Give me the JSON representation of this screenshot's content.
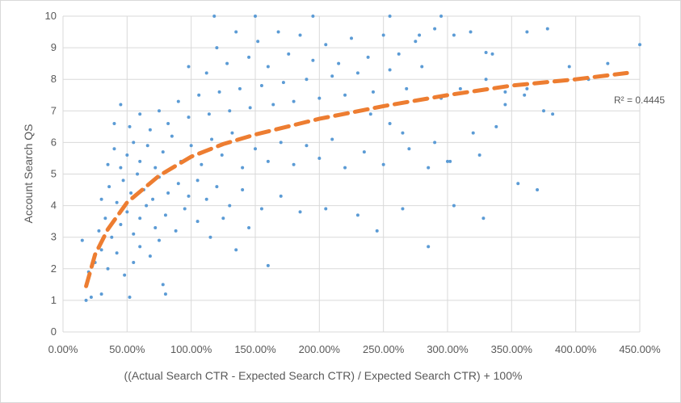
{
  "chart_data": {
    "type": "scatter",
    "title": "",
    "xlabel": "((Actual Search CTR - Expected Search CTR) / Expected  Search CTR) + 100%",
    "ylabel": "Account Search QS",
    "xlim": [
      0,
      4.5
    ],
    "ylim": [
      0,
      10
    ],
    "x_ticks": [
      0,
      0.5,
      1.0,
      1.5,
      2.0,
      2.5,
      3.0,
      3.5,
      4.0,
      4.5
    ],
    "x_tick_labels": [
      "0.00%",
      "50.00%",
      "100.00%",
      "150.00%",
      "200.00%",
      "250.00%",
      "300.00%",
      "350.00%",
      "400.00%",
      "450.00%"
    ],
    "y_ticks": [
      0,
      1,
      2,
      3,
      4,
      5,
      6,
      7,
      8,
      9,
      10
    ],
    "y_tick_labels": [
      "0",
      "1",
      "2",
      "3",
      "4",
      "5",
      "6",
      "7",
      "8",
      "9",
      "10"
    ],
    "grid": "horizontal",
    "legend": "none",
    "colors": {
      "points": "#5b9bd5",
      "trendline": "#ed7d31",
      "grid": "#d9d9d9",
      "text": "#595959"
    },
    "trendline": {
      "type": "logarithmic",
      "r_squared_label": "R² = 0.4445",
      "points": [
        {
          "x": 0.18,
          "y": 1.45
        },
        {
          "x": 0.25,
          "y": 2.45
        },
        {
          "x": 0.35,
          "y": 3.25
        },
        {
          "x": 0.5,
          "y": 4.1
        },
        {
          "x": 0.75,
          "y": 4.95
        },
        {
          "x": 1.0,
          "y": 5.55
        },
        {
          "x": 1.25,
          "y": 5.95
        },
        {
          "x": 1.5,
          "y": 6.25
        },
        {
          "x": 1.75,
          "y": 6.5
        },
        {
          "x": 2.0,
          "y": 6.75
        },
        {
          "x": 2.25,
          "y": 6.95
        },
        {
          "x": 2.5,
          "y": 7.15
        },
        {
          "x": 3.0,
          "y": 7.5
        },
        {
          "x": 3.5,
          "y": 7.8
        },
        {
          "x": 4.0,
          "y": 8.0
        },
        {
          "x": 4.4,
          "y": 8.2
        }
      ]
    },
    "series": [
      {
        "points": [
          {
            "x": 0.18,
            "y": 1.0
          },
          {
            "x": 0.22,
            "y": 1.1
          },
          {
            "x": 0.3,
            "y": 1.2
          },
          {
            "x": 0.52,
            "y": 1.1
          },
          {
            "x": 0.8,
            "y": 1.2
          },
          {
            "x": 0.2,
            "y": 1.9
          },
          {
            "x": 0.25,
            "y": 2.2
          },
          {
            "x": 0.3,
            "y": 2.6
          },
          {
            "x": 0.35,
            "y": 2.0
          },
          {
            "x": 0.42,
            "y": 2.5
          },
          {
            "x": 0.48,
            "y": 1.8
          },
          {
            "x": 0.55,
            "y": 2.2
          },
          {
            "x": 0.6,
            "y": 2.7
          },
          {
            "x": 0.68,
            "y": 2.4
          },
          {
            "x": 0.75,
            "y": 2.9
          },
          {
            "x": 0.78,
            "y": 1.5
          },
          {
            "x": 0.15,
            "y": 2.9
          },
          {
            "x": 0.28,
            "y": 3.2
          },
          {
            "x": 0.33,
            "y": 3.6
          },
          {
            "x": 0.38,
            "y": 3.0
          },
          {
            "x": 0.45,
            "y": 3.4
          },
          {
            "x": 0.5,
            "y": 3.8
          },
          {
            "x": 0.55,
            "y": 3.1
          },
          {
            "x": 0.6,
            "y": 3.6
          },
          {
            "x": 0.65,
            "y": 4.0
          },
          {
            "x": 0.72,
            "y": 3.3
          },
          {
            "x": 0.8,
            "y": 3.7
          },
          {
            "x": 0.88,
            "y": 3.2
          },
          {
            "x": 0.95,
            "y": 3.9
          },
          {
            "x": 1.05,
            "y": 3.5
          },
          {
            "x": 1.15,
            "y": 3.0
          },
          {
            "x": 1.25,
            "y": 3.6
          },
          {
            "x": 1.35,
            "y": 2.6
          },
          {
            "x": 1.45,
            "y": 3.3
          },
          {
            "x": 1.6,
            "y": 2.1
          },
          {
            "x": 0.3,
            "y": 4.2
          },
          {
            "x": 0.36,
            "y": 4.6
          },
          {
            "x": 0.42,
            "y": 4.1
          },
          {
            "x": 0.47,
            "y": 4.8
          },
          {
            "x": 0.53,
            "y": 4.4
          },
          {
            "x": 0.58,
            "y": 5.0
          },
          {
            "x": 0.63,
            "y": 4.5
          },
          {
            "x": 0.7,
            "y": 4.2
          },
          {
            "x": 0.75,
            "y": 4.9
          },
          {
            "x": 0.82,
            "y": 4.4
          },
          {
            "x": 0.9,
            "y": 4.7
          },
          {
            "x": 0.98,
            "y": 4.3
          },
          {
            "x": 1.05,
            "y": 4.8
          },
          {
            "x": 1.12,
            "y": 4.2
          },
          {
            "x": 1.2,
            "y": 4.6
          },
          {
            "x": 1.3,
            "y": 4.0
          },
          {
            "x": 1.4,
            "y": 4.5
          },
          {
            "x": 1.55,
            "y": 3.9
          },
          {
            "x": 1.7,
            "y": 4.3
          },
          {
            "x": 1.85,
            "y": 3.8
          },
          {
            "x": 2.05,
            "y": 3.9
          },
          {
            "x": 2.3,
            "y": 3.7
          },
          {
            "x": 2.45,
            "y": 3.2
          },
          {
            "x": 2.65,
            "y": 3.9
          },
          {
            "x": 2.85,
            "y": 2.7
          },
          {
            "x": 0.35,
            "y": 5.3
          },
          {
            "x": 0.4,
            "y": 5.8
          },
          {
            "x": 0.45,
            "y": 5.2
          },
          {
            "x": 0.5,
            "y": 5.6
          },
          {
            "x": 0.55,
            "y": 6.0
          },
          {
            "x": 0.6,
            "y": 5.4
          },
          {
            "x": 0.66,
            "y": 5.9
          },
          {
            "x": 0.72,
            "y": 5.2
          },
          {
            "x": 0.78,
            "y": 5.7
          },
          {
            "x": 0.85,
            "y": 6.2
          },
          {
            "x": 0.92,
            "y": 5.4
          },
          {
            "x": 1.0,
            "y": 5.9
          },
          {
            "x": 1.08,
            "y": 5.3
          },
          {
            "x": 1.16,
            "y": 6.1
          },
          {
            "x": 1.24,
            "y": 5.6
          },
          {
            "x": 1.32,
            "y": 6.3
          },
          {
            "x": 1.4,
            "y": 5.2
          },
          {
            "x": 1.5,
            "y": 5.8
          },
          {
            "x": 1.6,
            "y": 5.4
          },
          {
            "x": 1.7,
            "y": 6.0
          },
          {
            "x": 1.8,
            "y": 5.3
          },
          {
            "x": 1.9,
            "y": 5.9
          },
          {
            "x": 2.0,
            "y": 5.5
          },
          {
            "x": 2.1,
            "y": 6.1
          },
          {
            "x": 2.2,
            "y": 5.2
          },
          {
            "x": 2.35,
            "y": 5.7
          },
          {
            "x": 2.5,
            "y": 5.3
          },
          {
            "x": 2.7,
            "y": 5.8
          },
          {
            "x": 2.85,
            "y": 5.2
          },
          {
            "x": 3.05,
            "y": 4.0
          },
          {
            "x": 3.02,
            "y": 5.4
          },
          {
            "x": 3.25,
            "y": 5.6
          },
          {
            "x": 3.7,
            "y": 4.5
          },
          {
            "x": 3.55,
            "y": 4.7
          },
          {
            "x": 3.28,
            "y": 3.6
          },
          {
            "x": 0.4,
            "y": 6.6
          },
          {
            "x": 0.45,
            "y": 7.2
          },
          {
            "x": 0.52,
            "y": 6.5
          },
          {
            "x": 0.6,
            "y": 6.9
          },
          {
            "x": 0.68,
            "y": 6.4
          },
          {
            "x": 0.75,
            "y": 7.0
          },
          {
            "x": 0.82,
            "y": 6.6
          },
          {
            "x": 0.9,
            "y": 7.3
          },
          {
            "x": 0.98,
            "y": 6.8
          },
          {
            "x": 1.06,
            "y": 7.5
          },
          {
            "x": 1.14,
            "y": 6.9
          },
          {
            "x": 1.22,
            "y": 7.6
          },
          {
            "x": 1.3,
            "y": 7.0
          },
          {
            "x": 1.38,
            "y": 7.7
          },
          {
            "x": 1.46,
            "y": 7.1
          },
          {
            "x": 1.55,
            "y": 7.8
          },
          {
            "x": 1.64,
            "y": 7.2
          },
          {
            "x": 1.72,
            "y": 7.9
          },
          {
            "x": 1.8,
            "y": 7.3
          },
          {
            "x": 1.9,
            "y": 8.0
          },
          {
            "x": 2.0,
            "y": 7.4
          },
          {
            "x": 2.1,
            "y": 8.1
          },
          {
            "x": 2.2,
            "y": 7.5
          },
          {
            "x": 2.3,
            "y": 8.2
          },
          {
            "x": 2.42,
            "y": 7.6
          },
          {
            "x": 2.55,
            "y": 8.3
          },
          {
            "x": 2.68,
            "y": 7.7
          },
          {
            "x": 2.8,
            "y": 8.4
          },
          {
            "x": 2.95,
            "y": 7.4
          },
          {
            "x": 3.1,
            "y": 7.7
          },
          {
            "x": 3.3,
            "y": 8.0
          },
          {
            "x": 3.45,
            "y": 7.6
          },
          {
            "x": 3.6,
            "y": 7.5
          },
          {
            "x": 3.75,
            "y": 7.0
          },
          {
            "x": 3.95,
            "y": 8.4
          },
          {
            "x": 4.1,
            "y": 8.0
          },
          {
            "x": 4.25,
            "y": 8.5
          },
          {
            "x": 0.98,
            "y": 8.4
          },
          {
            "x": 1.12,
            "y": 8.2
          },
          {
            "x": 1.2,
            "y": 9.0
          },
          {
            "x": 1.28,
            "y": 8.5
          },
          {
            "x": 1.35,
            "y": 9.5
          },
          {
            "x": 1.45,
            "y": 8.7
          },
          {
            "x": 1.52,
            "y": 9.2
          },
          {
            "x": 1.6,
            "y": 8.4
          },
          {
            "x": 1.68,
            "y": 9.5
          },
          {
            "x": 1.76,
            "y": 8.8
          },
          {
            "x": 1.85,
            "y": 9.4
          },
          {
            "x": 1.95,
            "y": 8.6
          },
          {
            "x": 2.05,
            "y": 9.1
          },
          {
            "x": 2.15,
            "y": 8.5
          },
          {
            "x": 2.25,
            "y": 9.3
          },
          {
            "x": 2.38,
            "y": 8.7
          },
          {
            "x": 2.5,
            "y": 9.4
          },
          {
            "x": 2.62,
            "y": 8.8
          },
          {
            "x": 2.75,
            "y": 9.2
          },
          {
            "x": 2.9,
            "y": 9.6
          },
          {
            "x": 3.05,
            "y": 9.4
          },
          {
            "x": 3.18,
            "y": 9.5
          },
          {
            "x": 3.35,
            "y": 8.8
          },
          {
            "x": 3.62,
            "y": 9.5
          },
          {
            "x": 3.78,
            "y": 9.6
          },
          {
            "x": 4.5,
            "y": 9.1
          },
          {
            "x": 1.5,
            "y": 10.0
          },
          {
            "x": 1.95,
            "y": 10.0
          },
          {
            "x": 2.55,
            "y": 10.0
          },
          {
            "x": 2.95,
            "y": 10.0
          },
          {
            "x": 1.18,
            "y": 10.0
          },
          {
            "x": 2.78,
            "y": 9.4
          },
          {
            "x": 3.3,
            "y": 8.85
          },
          {
            "x": 3.38,
            "y": 6.5
          },
          {
            "x": 3.45,
            "y": 7.2
          },
          {
            "x": 3.82,
            "y": 6.9
          },
          {
            "x": 3.62,
            "y": 7.7
          },
          {
            "x": 3.2,
            "y": 6.3
          },
          {
            "x": 3.0,
            "y": 5.4
          },
          {
            "x": 2.65,
            "y": 6.3
          },
          {
            "x": 2.55,
            "y": 6.6
          },
          {
            "x": 2.9,
            "y": 6.0
          },
          {
            "x": 2.4,
            "y": 6.9
          }
        ]
      }
    ]
  }
}
